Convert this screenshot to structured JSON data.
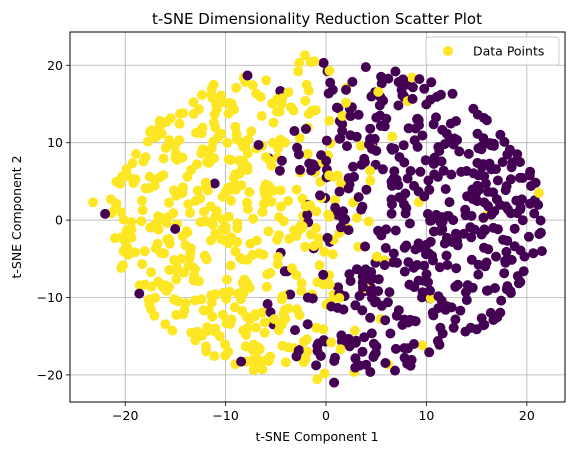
{
  "chart_data": {
    "type": "scatter",
    "title": "t-SNE Dimensionality Reduction Scatter Plot",
    "xlabel": "t-SNE Component 1",
    "ylabel": "t-SNE Component 2",
    "xlim": [
      -25.5,
      23.8
    ],
    "ylim": [
      -23.5,
      24.3
    ],
    "xticks": [
      -20,
      -10,
      0,
      10,
      20
    ],
    "yticks": [
      -20,
      -10,
      0,
      10,
      20
    ],
    "grid": true,
    "legend": {
      "label": "Data Points",
      "placement": "top-right"
    },
    "colors": {
      "class_0": "#440154",
      "class_1": "#fde725",
      "grid": "#b0b0b0"
    },
    "classes": [
      0,
      1
    ],
    "n_points": 1000,
    "x_center_by_class": {
      "0": 8.0,
      "1": -8.0
    },
    "y_center": 0,
    "approx_radius": 21
  }
}
